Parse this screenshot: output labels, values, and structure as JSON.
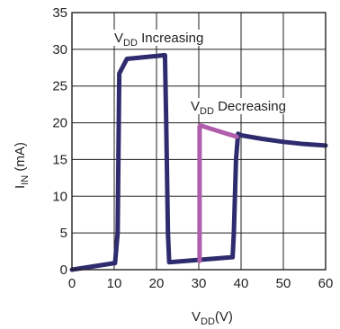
{
  "chart_data": {
    "type": "line",
    "xlabel": {
      "main": "V",
      "sub": "DD",
      "suffix": "(V)"
    },
    "ylabel": {
      "main": "I",
      "sub": "IN",
      "suffix": " (mA)"
    },
    "xlim": [
      0,
      60
    ],
    "ylim": [
      0,
      35
    ],
    "x_ticks": [
      0,
      10,
      20,
      30,
      40,
      50,
      60
    ],
    "y_ticks": [
      0,
      5,
      10,
      15,
      20,
      25,
      30,
      35
    ],
    "grid": true,
    "series": [
      {
        "name": "VDD Increasing",
        "color": "#2e2c6e",
        "x": [
          0,
          10.2,
          10.8,
          11.2,
          13,
          22,
          22.3,
          22.7,
          23,
          25,
          38,
          38.3,
          38.8,
          39.3,
          40,
          45,
          50,
          55,
          60
        ],
        "y": [
          0,
          0.9,
          5,
          26.7,
          28.7,
          29.2,
          20,
          5,
          1.0,
          1.1,
          1.7,
          5,
          15,
          18.5,
          18.3,
          17.8,
          17.4,
          17.1,
          16.9
        ]
      },
      {
        "name": "VDD Decreasing",
        "color": "#b05dac",
        "x": [
          30.2,
          30.2,
          30.5,
          35,
          39
        ],
        "y": [
          1.2,
          19.5,
          19.6,
          18.8,
          18.1
        ]
      }
    ],
    "annotations": [
      {
        "main": "V",
        "sub": "DD",
        "text": " Increasing",
        "series": "VDD Increasing"
      },
      {
        "main": "V",
        "sub": "DD",
        "text": " Decreasing",
        "series": "VDD Decreasing"
      }
    ]
  }
}
